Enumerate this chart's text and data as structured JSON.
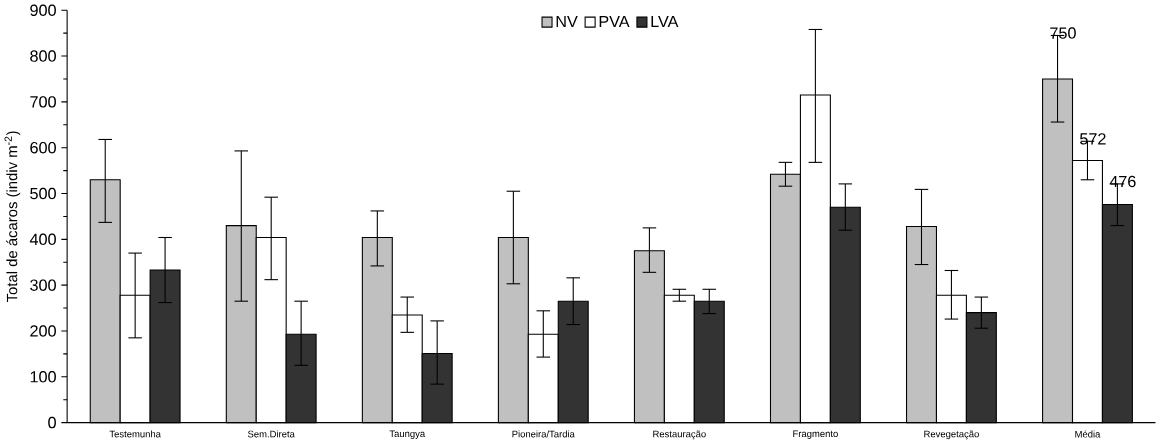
{
  "chart_data": {
    "type": "bar",
    "ylabel": "Total de ácaros (indiv m$^{-2}$)",
    "categories": [
      "Testemunha",
      "Sem.Direta",
      "Taungya",
      "Pioneira/Tardia",
      "Restauração",
      "Fragmento",
      "Revegetação",
      "Média"
    ],
    "series": [
      {
        "name": "NV",
        "color": "#c0c0c0",
        "values": [
          530,
          430,
          404,
          404,
          375,
          542,
          428,
          750
        ],
        "errors": [
          [
            437,
            618
          ],
          [
            265,
            593
          ],
          [
            342,
            462
          ],
          [
            303,
            505
          ],
          [
            328,
            425
          ],
          [
            516,
            568
          ],
          [
            345,
            509
          ],
          [
            656,
            845
          ]
        ],
        "value_labels": [
          null,
          null,
          null,
          null,
          null,
          null,
          null,
          "750"
        ]
      },
      {
        "name": "PVA",
        "color": "#ffffff",
        "values": [
          278,
          404,
          235,
          193,
          278,
          715,
          278,
          572
        ],
        "errors": [
          [
            185,
            370
          ],
          [
            312,
            492
          ],
          [
            197,
            274
          ],
          [
            143,
            244
          ],
          [
            265,
            291
          ],
          [
            568,
            858
          ],
          [
            226,
            332
          ],
          [
            530,
            614
          ]
        ],
        "value_labels": [
          null,
          null,
          null,
          null,
          null,
          null,
          null,
          "572"
        ]
      },
      {
        "name": "LVA",
        "color": "#333333",
        "values": [
          333,
          193,
          151,
          265,
          265,
          470,
          240,
          476
        ],
        "errors": [
          [
            262,
            404
          ],
          [
            125,
            265
          ],
          [
            84,
            222
          ],
          [
            214,
            316
          ],
          [
            238,
            291
          ],
          [
            420,
            521
          ],
          [
            206,
            274
          ],
          [
            430,
            521
          ]
        ],
        "value_labels": [
          null,
          null,
          null,
          null,
          null,
          null,
          null,
          "476"
        ]
      }
    ],
    "ylim": [
      0,
      900
    ],
    "yticks": [
      0,
      100,
      200,
      300,
      400,
      500,
      600,
      700,
      800,
      900
    ],
    "legend": "top"
  }
}
